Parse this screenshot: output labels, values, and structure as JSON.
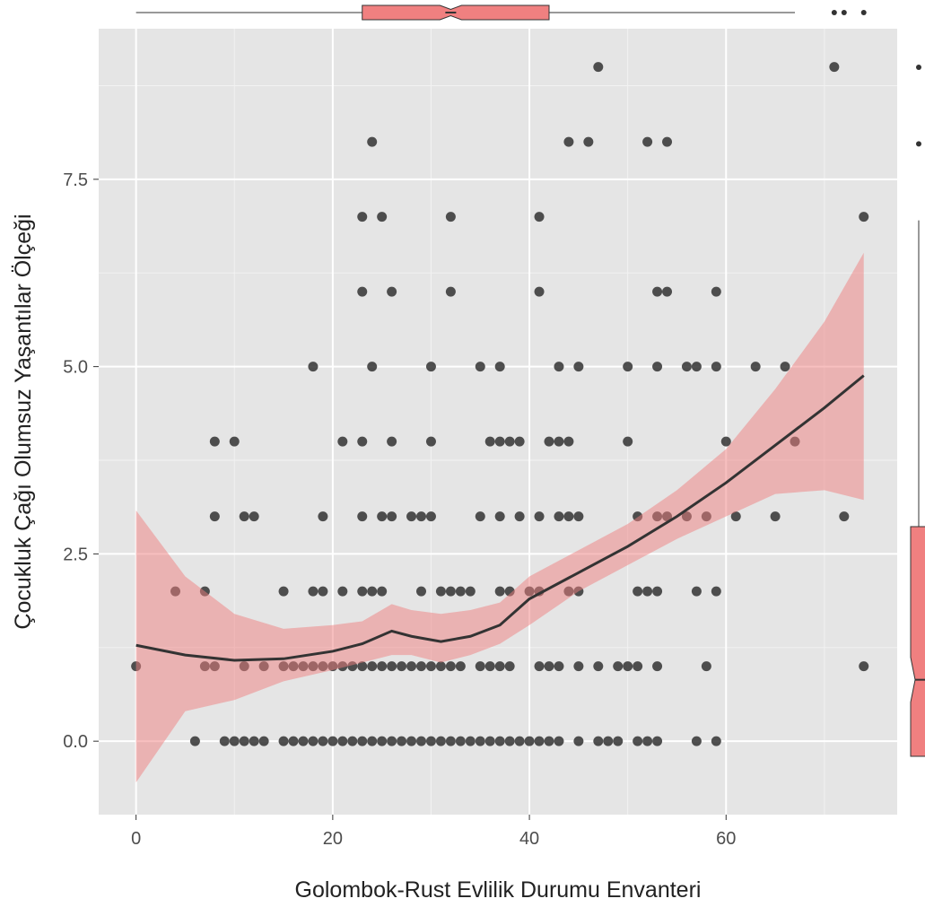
{
  "chart_data": {
    "type": "scatter",
    "xlabel": "Golombok-Rust Evlilik Durumu Envanteri",
    "ylabel": "Çocukluk Çağı Olumsuz Yaşantılar Ölçeği",
    "color": "#333333",
    "x": [
      47,
      71,
      24,
      44,
      46,
      52,
      54,
      23,
      25,
      32,
      41,
      74,
      23,
      26,
      32,
      41,
      53,
      54,
      59,
      18,
      24,
      30,
      35,
      37,
      43,
      45,
      50,
      53,
      56,
      57,
      59,
      63,
      66,
      8,
      10,
      21,
      23,
      26,
      30,
      36,
      37,
      38,
      39,
      42,
      43,
      44,
      50,
      60,
      67,
      8,
      11,
      12,
      19,
      23,
      25,
      26,
      28,
      29,
      30,
      35,
      37,
      39,
      41,
      43,
      44,
      45,
      51,
      53,
      54,
      56,
      58,
      61,
      65,
      72,
      4,
      7,
      15,
      18,
      19,
      21,
      23,
      24,
      25,
      29,
      31,
      32,
      33,
      34,
      37,
      38,
      40,
      41,
      44,
      45,
      51,
      52,
      53,
      57,
      59,
      0,
      7,
      8,
      11,
      13,
      15,
      16,
      17,
      18,
      19,
      20,
      21,
      22,
      23,
      24,
      25,
      26,
      27,
      28,
      29,
      30,
      31,
      32,
      33,
      35,
      36,
      37,
      38,
      41,
      42,
      43,
      45,
      47,
      49,
      50,
      51,
      53,
      58,
      74,
      6,
      9,
      10,
      11,
      12,
      13,
      15,
      16,
      17,
      18,
      19,
      20,
      21,
      22,
      23,
      24,
      25,
      26,
      27,
      28,
      29,
      30,
      31,
      32,
      33,
      34,
      35,
      36,
      37,
      38,
      39,
      40,
      41,
      42,
      43,
      45,
      47,
      48,
      49,
      51,
      52,
      53,
      57,
      59
    ],
    "values": [
      9,
      9,
      8,
      8,
      8,
      8,
      8,
      7,
      7,
      7,
      7,
      7,
      6,
      6,
      6,
      6,
      6,
      6,
      6,
      5,
      5,
      5,
      5,
      5,
      5,
      5,
      5,
      5,
      5,
      5,
      5,
      5,
      5,
      4,
      4,
      4,
      4,
      4,
      4,
      4,
      4,
      4,
      4,
      4,
      4,
      4,
      4,
      4,
      4,
      3,
      3,
      3,
      3,
      3,
      3,
      3,
      3,
      3,
      3,
      3,
      3,
      3,
      3,
      3,
      3,
      3,
      3,
      3,
      3,
      3,
      3,
      3,
      3,
      3,
      2,
      2,
      2,
      2,
      2,
      2,
      2,
      2,
      2,
      2,
      2,
      2,
      2,
      2,
      2,
      2,
      2,
      2,
      2,
      2,
      2,
      2,
      2,
      2,
      2,
      1,
      1,
      1,
      1,
      1,
      1,
      1,
      1,
      1,
      1,
      1,
      1,
      1,
      1,
      1,
      1,
      1,
      1,
      1,
      1,
      1,
      1,
      1,
      1,
      1,
      1,
      1,
      1,
      1,
      1,
      1,
      1,
      1,
      1,
      1,
      1,
      1,
      1,
      1,
      0,
      0,
      0,
      0,
      0,
      0,
      0,
      0,
      0,
      0,
      0,
      0,
      0,
      0,
      0,
      0,
      0,
      0,
      0,
      0,
      0,
      0,
      0,
      0,
      0,
      0,
      0,
      0,
      0,
      0,
      0,
      0,
      0,
      0,
      0,
      0,
      0,
      0,
      0,
      0,
      0,
      0,
      0,
      0
    ],
    "smooth": {
      "color": "#333333",
      "band_color": "#f08080",
      "x": [
        0,
        5,
        10,
        15,
        20,
        23,
        26,
        28,
        31,
        34,
        37,
        40,
        45,
        50,
        55,
        60,
        65,
        70,
        74
      ],
      "values": [
        1.28,
        1.15,
        1.08,
        1.1,
        1.2,
        1.3,
        1.47,
        1.4,
        1.33,
        1.4,
        1.55,
        1.9,
        2.25,
        2.6,
        3.0,
        3.45,
        3.95,
        4.45,
        4.88
      ],
      "lower": [
        -0.55,
        0.4,
        0.55,
        0.8,
        0.95,
        1.05,
        1.15,
        1.15,
        1.05,
        1.15,
        1.3,
        1.55,
        2.0,
        2.35,
        2.7,
        3.0,
        3.3,
        3.35,
        3.22
      ],
      "upper": [
        3.08,
        2.2,
        1.7,
        1.5,
        1.55,
        1.6,
        1.83,
        1.75,
        1.7,
        1.75,
        1.85,
        2.2,
        2.55,
        2.9,
        3.35,
        3.9,
        4.7,
        5.6,
        6.52
      ]
    },
    "x_box": {
      "color": "#f08080",
      "min": 0,
      "q1": 23,
      "median": 32,
      "q3": 42,
      "max": 67,
      "outliers": [
        71,
        72,
        74
      ]
    },
    "y_box": {
      "color": "#f08080",
      "min": 0,
      "q1": 0,
      "median": 1,
      "q3": 3,
      "max": 7,
      "outliers": [
        8,
        9
      ]
    },
    "xlim": [
      -3.8,
      77.4
    ],
    "ylim": [
      -0.98,
      9.51
    ],
    "xticks": [
      0,
      20,
      40,
      60
    ],
    "yticks": [
      {
        "value": 0,
        "label": "0.0"
      },
      2.5,
      {
        "value": 5,
        "label": "5.0"
      },
      7.5
    ],
    "grid": true
  }
}
